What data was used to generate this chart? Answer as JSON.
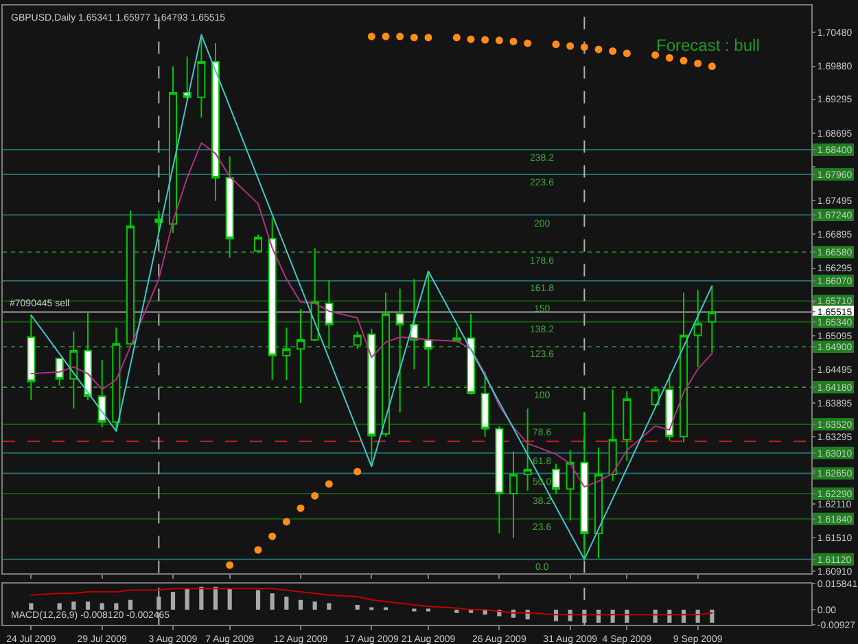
{
  "chart_data": [
    {
      "type": "candlestick",
      "title": "GBPUSD,Daily 1.65341 1.65977 1.64793 1.65515",
      "color": "#00c800",
      "x": [
        "2009-07-24",
        "2009-07-26",
        "2009-07-27",
        "2009-07-28",
        "2009-07-29",
        "2009-07-30",
        "2009-07-31",
        "2009-08-02",
        "2009-08-03",
        "2009-08-04",
        "2009-08-05",
        "2009-08-06",
        "2009-08-07",
        "2009-08-09",
        "2009-08-10",
        "2009-08-11",
        "2009-08-12",
        "2009-08-13",
        "2009-08-14",
        "2009-08-16",
        "2009-08-17",
        "2009-08-18",
        "2009-08-19",
        "2009-08-20",
        "2009-08-21",
        "2009-08-23",
        "2009-08-24",
        "2009-08-25",
        "2009-08-26",
        "2009-08-27",
        "2009-08-28",
        "2009-08-30",
        "2009-08-31",
        "2009-09-01",
        "2009-09-02",
        "2009-09-03",
        "2009-09-04",
        "2009-09-06",
        "2009-09-07",
        "2009-09-08",
        "2009-09-09",
        "2009-09-10"
      ],
      "ohlc": [
        [
          1.6507,
          1.6546,
          1.6395,
          1.6428
        ],
        [
          1.6469,
          1.647,
          1.6421,
          1.6433
        ],
        [
          1.6433,
          1.6517,
          1.638,
          1.6483
        ],
        [
          1.6483,
          1.6553,
          1.6395,
          1.6402
        ],
        [
          1.6402,
          1.6466,
          1.6347,
          1.6356
        ],
        [
          1.6356,
          1.6524,
          1.634,
          1.6495
        ],
        [
          1.6495,
          1.6732,
          1.6493,
          1.6704
        ],
        [
          1.6716,
          1.6732,
          1.6694,
          1.6711
        ],
        [
          1.6708,
          1.6988,
          1.6692,
          1.6941
        ],
        [
          1.6941,
          1.7005,
          1.693,
          1.6933
        ],
        [
          1.6933,
          1.7044,
          1.6897,
          1.6996
        ],
        [
          1.6996,
          1.7029,
          1.6749,
          1.679
        ],
        [
          1.679,
          1.6828,
          1.6648,
          1.6682
        ],
        [
          1.666,
          1.6689,
          1.6656,
          1.6684
        ],
        [
          1.6682,
          1.6718,
          1.6431,
          1.6474
        ],
        [
          1.6474,
          1.6524,
          1.6431,
          1.6486
        ],
        [
          1.6486,
          1.6557,
          1.639,
          1.6502
        ],
        [
          1.6502,
          1.6665,
          1.65,
          1.6569
        ],
        [
          1.6567,
          1.6608,
          1.6486,
          1.6529
        ],
        [
          1.6493,
          1.6517,
          1.6486,
          1.651
        ],
        [
          1.6512,
          1.6522,
          1.6277,
          1.6332
        ],
        [
          1.6335,
          1.6586,
          1.633,
          1.6548
        ],
        [
          1.6548,
          1.6593,
          1.6373,
          1.6529
        ],
        [
          1.6529,
          1.661,
          1.645,
          1.6502
        ],
        [
          1.6502,
          1.6624,
          1.6419,
          1.6486
        ],
        [
          1.65,
          1.6524,
          1.6498,
          1.6505
        ],
        [
          1.6505,
          1.6548,
          1.6405,
          1.6407
        ],
        [
          1.6407,
          1.6445,
          1.633,
          1.6344
        ],
        [
          1.6344,
          1.6349,
          1.6158,
          1.6229
        ],
        [
          1.6229,
          1.6304,
          1.615,
          1.6263
        ],
        [
          1.6263,
          1.638,
          1.6234,
          1.6272
        ],
        [
          1.6272,
          1.6282,
          1.6229,
          1.6237
        ],
        [
          1.6237,
          1.6306,
          1.6181,
          1.6284
        ],
        [
          1.6284,
          1.6373,
          1.6112,
          1.6158
        ],
        [
          1.6158,
          1.6311,
          1.6114,
          1.6263
        ],
        [
          1.6263,
          1.6414,
          1.6251,
          1.6325
        ],
        [
          1.6325,
          1.6411,
          1.6287,
          1.6397
        ],
        [
          1.6387,
          1.6419,
          1.6383,
          1.6414
        ],
        [
          1.6414,
          1.6442,
          1.6323,
          1.633
        ],
        [
          1.633,
          1.6586,
          1.632,
          1.651
        ],
        [
          1.651,
          1.6591,
          1.6454,
          1.6531
        ],
        [
          1.65341,
          1.65977,
          1.64793,
          1.65515
        ]
      ],
      "series": [
        {
          "type": "line",
          "color": "#b03080",
          "values": [
            1.6442,
            1.6445,
            1.6454,
            1.6442,
            1.6414,
            1.6431,
            1.649,
            1.661,
            1.6713,
            1.679,
            1.6852,
            1.6833,
            1.6792,
            1.6744,
            1.6665,
            1.661,
            1.6569,
            1.6567,
            1.6553,
            1.6541,
            1.6471,
            1.6498,
            1.6507,
            1.6505,
            1.6502,
            1.65,
            1.6486,
            1.6442,
            1.6385,
            1.6347,
            1.6318,
            1.6299,
            1.6282,
            1.6241,
            1.6251,
            1.6265,
            1.6306,
            1.6349,
            1.6342,
            1.6409,
            1.645,
            1.6478
          ]
        },
        {
          "type": "line",
          "color": "#40c8c8",
          "x": [
            "2009-07-24",
            "2009-07-30",
            "2009-08-05",
            "2009-08-17",
            "2009-08-21",
            "2009-09-01",
            "2009-09-10"
          ],
          "values": [
            1.6546,
            1.634,
            1.7044,
            1.6277,
            1.6624,
            1.6112,
            1.6598
          ]
        },
        {
          "type": "scatter",
          "color": "#ff8c1a",
          "marker": "circle",
          "values": [
            null,
            null,
            null,
            null,
            null,
            null,
            null,
            null,
            null,
            null,
            null,
            null,
            1.6102,
            1.6129,
            1.6153,
            1.6179,
            1.6203,
            1.6225,
            1.6246,
            1.6268,
            1.7041,
            1.7041,
            1.7041,
            1.7039,
            1.7039,
            1.7039,
            1.7036,
            1.7035,
            1.7034,
            1.7032,
            1.7029,
            1.7027,
            1.7024,
            1.7022,
            1.7018,
            1.7015,
            1.7011,
            1.7008,
            1.7003,
            1.6998,
            1.6993,
            1.6988
          ]
        }
      ],
      "xlim": [
        "2009-07-22",
        "2009-09-17"
      ],
      "ylim": [
        1.6088,
        1.7096
      ],
      "xticks": [
        {
          "value": "2009-07-24",
          "label": null
        },
        {
          "value": "2009-07-29",
          "label": null
        },
        {
          "value": "2009-08-03",
          "label": null
        },
        {
          "value": "2009-08-07",
          "label": null
        },
        {
          "value": "2009-08-12",
          "label": null
        },
        {
          "value": "2009-08-17",
          "label": null
        },
        {
          "value": "2009-08-21",
          "label": null
        },
        {
          "value": "2009-08-26",
          "label": null
        },
        {
          "value": "2009-08-31",
          "label": null
        },
        {
          "value": "2009-09-04",
          "label": null
        },
        {
          "value": "2009-09-09",
          "label": null
        }
      ],
      "yticks": [
        {
          "value": 1.7048,
          "label": "1.70480"
        },
        {
          "value": 1.6988,
          "label": "1.69880"
        },
        {
          "value": 1.69295,
          "label": "1.69295"
        },
        {
          "value": 1.68695,
          "label": "1.68695"
        },
        {
          "value": 1.68095,
          "label": null
        },
        {
          "value": 1.67495,
          "label": "1.67495"
        },
        {
          "value": 1.66895,
          "label": "1.66895"
        },
        {
          "value": 1.66295,
          "label": "1.66295"
        },
        {
          "value": 1.65695,
          "label": null
        },
        {
          "value": 1.65095,
          "label": "1.65095"
        },
        {
          "value": 1.64495,
          "label": "1.64495"
        },
        {
          "value": 1.63895,
          "label": "1.63895"
        },
        {
          "value": 1.63295,
          "label": "1.63295"
        },
        {
          "value": 1.62695,
          "label": null
        },
        {
          "value": 1.6211,
          "label": "1.62110"
        },
        {
          "value": 1.6151,
          "label": "1.61510"
        },
        {
          "value": 1.6091,
          "label": "1.60910"
        },
        {
          "value": 1.684,
          "label": "1.68400"
        },
        {
          "value": 1.6796,
          "label": "1.67960"
        },
        {
          "value": 1.6724,
          "label": "1.67240"
        },
        {
          "value": 1.6658,
          "label": "1.66580"
        },
        {
          "value": 1.6607,
          "label": "1.66070"
        },
        {
          "value": 1.6571,
          "label": "1.65710"
        },
        {
          "value": 1.65515,
          "label": "1.65515"
        },
        {
          "value": 1.6534,
          "label": "1.65340"
        },
        {
          "value": 1.649,
          "label": "1.64900"
        },
        {
          "value": 1.6418,
          "label": "1.64180"
        },
        {
          "value": 1.6352,
          "label": "1.63520"
        },
        {
          "value": 1.6301,
          "label": "1.63010"
        },
        {
          "value": 1.6265,
          "label": "1.62650"
        },
        {
          "value": 1.6229,
          "label": "1.62290"
        },
        {
          "value": 1.6184,
          "label": "1.61840"
        },
        {
          "value": 1.6112,
          "label": "1.61120"
        }
      ],
      "ref_lines": [
        {
          "axis": "y",
          "value": 1.684,
          "color": "#206e6e",
          "line_style": "solid"
        },
        {
          "axis": "y",
          "value": 1.6796,
          "color": "#206e6e",
          "line_style": "solid"
        },
        {
          "axis": "y",
          "value": 1.6724,
          "color": "#1e5a5a",
          "line_style": "solid"
        },
        {
          "axis": "y",
          "value": 1.6658,
          "color": "#2a7a2a",
          "line_style": "dotted"
        },
        {
          "axis": "y",
          "value": 1.6607,
          "color": "#206e6e",
          "line_style": "solid"
        },
        {
          "axis": "y",
          "value": 1.6571,
          "color": "#145a14",
          "line_style": "solid"
        },
        {
          "axis": "y",
          "value": 1.65515,
          "color": "#a0a0a0",
          "line_style": "solid"
        },
        {
          "axis": "y",
          "value": 1.6534,
          "color": "#145a14",
          "line_style": "solid"
        },
        {
          "axis": "y",
          "value": 1.649,
          "color": "#2a7a2a",
          "line_style": "dotted"
        },
        {
          "axis": "y",
          "value": 1.6418,
          "color": "#3a8a3a",
          "line_style": "dotted"
        },
        {
          "axis": "y",
          "value": 1.6352,
          "color": "#145a14",
          "line_style": "solid"
        },
        {
          "axis": "y",
          "value": 1.6322,
          "color": "#d02020",
          "line_style": "dashed"
        },
        {
          "axis": "y",
          "value": 1.6301,
          "color": "#206e6e",
          "line_style": "solid"
        },
        {
          "axis": "y",
          "value": 1.6265,
          "color": "#206e6e",
          "line_style": "solid"
        },
        {
          "axis": "y",
          "value": 1.6229,
          "color": "#145a14",
          "line_style": "solid"
        },
        {
          "axis": "y",
          "value": 1.6184,
          "color": "#145a14",
          "line_style": "solid"
        },
        {
          "axis": "y",
          "value": 1.6112,
          "color": "#206e6e",
          "line_style": "solid"
        },
        {
          "axis": "x",
          "value": "2009-08-02",
          "color": "#b0b0b0",
          "line_style": "dashed"
        },
        {
          "axis": "x",
          "value": "2009-09-01",
          "color": "#b0b0b0",
          "line_style": "dashed"
        }
      ],
      "annotations": [
        {
          "text": "#7090445 sell",
          "x": "2009-07-22",
          "y": 1.65515
        },
        "Forecast : bull",
        {
          "text": "238.2",
          "x": "2009-08-29",
          "y": 1.684
        },
        {
          "text": "223.6",
          "x": "2009-08-29",
          "y": 1.6796
        },
        {
          "text": "200",
          "x": "2009-08-29",
          "y": 1.6724
        },
        {
          "text": "178.6",
          "x": "2009-08-29",
          "y": 1.6658
        },
        {
          "text": "161.8",
          "x": "2009-08-29",
          "y": 1.6607
        },
        {
          "text": "150",
          "x": "2009-08-29",
          "y": 1.6571
        },
        {
          "text": "138.2",
          "x": "2009-08-29",
          "y": 1.6534
        },
        {
          "text": "123.6",
          "x": "2009-08-29",
          "y": 1.649
        },
        {
          "text": "100",
          "x": "2009-08-29",
          "y": 1.6418
        },
        {
          "text": "78.6",
          "x": "2009-08-29",
          "y": 1.6352
        },
        {
          "text": "61.8",
          "x": "2009-08-29",
          "y": 1.6301
        },
        {
          "text": "50.0",
          "x": "2009-08-29",
          "y": 1.6265
        },
        {
          "text": "38.2",
          "x": "2009-08-29",
          "y": 1.6229
        },
        {
          "text": "23.6",
          "x": "2009-08-29",
          "y": 1.6184
        },
        {
          "text": "0.0",
          "x": "2009-08-29",
          "y": 1.6112
        }
      ],
      "tick_labels": "y"
    },
    {
      "type": "bar",
      "title": "MACD(12,26,9) -0.008120 -0.002465",
      "x": [
        "2009-07-24",
        "2009-07-26",
        "2009-07-27",
        "2009-07-28",
        "2009-07-29",
        "2009-07-30",
        "2009-07-31",
        "2009-08-02",
        "2009-08-03",
        "2009-08-04",
        "2009-08-05",
        "2009-08-06",
        "2009-08-07",
        "2009-08-09",
        "2009-08-10",
        "2009-08-11",
        "2009-08-12",
        "2009-08-13",
        "2009-08-14",
        "2009-08-16",
        "2009-08-17",
        "2009-08-18",
        "2009-08-19",
        "2009-08-20",
        "2009-08-21",
        "2009-08-23",
        "2009-08-24",
        "2009-08-25",
        "2009-08-26",
        "2009-08-27",
        "2009-08-28",
        "2009-08-30",
        "2009-08-31",
        "2009-09-01",
        "2009-09-02",
        "2009-09-03",
        "2009-09-04",
        "2009-09-06",
        "2009-09-07",
        "2009-09-08",
        "2009-09-09",
        "2009-09-10"
      ],
      "series": [
        {
          "type": "bar",
          "color": "#a8a8a8",
          "values": [
            0.004,
            0.004,
            0.005,
            0.005,
            0.004,
            0.004,
            0.006,
            0.008,
            0.011,
            0.013,
            0.014,
            0.014,
            0.013,
            0.012,
            0.01,
            0.008,
            0.006,
            0.005,
            0.004,
            0.003,
            0.001,
            0.001,
            0.0,
            -0.001,
            -0.001,
            -0.002,
            -0.002,
            -0.003,
            -0.004,
            -0.005,
            -0.006,
            -0.007,
            -0.007,
            -0.008,
            -0.008,
            -0.008,
            -0.008,
            -0.008,
            -0.008,
            -0.008,
            -0.008,
            -0.008
          ]
        },
        {
          "type": "line",
          "color": "#c00000",
          "values": [
            0.009,
            0.01,
            0.01,
            0.011,
            0.011,
            0.011,
            0.012,
            0.012,
            0.013,
            0.013,
            0.013,
            0.013,
            0.013,
            0.013,
            0.013,
            0.012,
            0.011,
            0.01,
            0.009,
            0.008,
            0.006,
            0.005,
            0.004,
            0.003,
            0.002,
            0.001,
            0.0,
            0.0,
            -0.001,
            -0.002,
            -0.002,
            -0.003,
            -0.003,
            -0.003,
            -0.003,
            -0.003,
            -0.003,
            -0.003,
            -0.003,
            -0.003,
            -0.003,
            -0.002
          ]
        }
      ],
      "xlim": [
        "2009-07-22",
        "2009-09-17"
      ],
      "ylim": [
        -0.00927,
        0.015841
      ],
      "xticks": [
        {
          "value": "2009-07-24",
          "label": "24 Jul 2009"
        },
        {
          "value": "2009-07-29",
          "label": "29 Jul 2009"
        },
        {
          "value": "2009-08-03",
          "label": "3 Aug 2009"
        },
        {
          "value": "2009-08-07",
          "label": "7 Aug 2009"
        },
        {
          "value": "2009-08-12",
          "label": "12 Aug 2009"
        },
        {
          "value": "2009-08-17",
          "label": "17 Aug 2009"
        },
        {
          "value": "2009-08-21",
          "label": "21 Aug 2009"
        },
        {
          "value": "2009-08-26",
          "label": "26 Aug 2009"
        },
        {
          "value": "2009-08-31",
          "label": "31 Aug 2009"
        },
        {
          "value": "2009-09-04",
          "label": "4 Sep 2009"
        },
        {
          "value": "2009-09-09",
          "label": "9 Sep 2009"
        }
      ],
      "yticks": [
        {
          "value": 0.015841,
          "label": "0.015841"
        },
        {
          "value": 0,
          "label": "0.00"
        },
        {
          "value": -0.00927,
          "label": "-0.00927"
        }
      ],
      "ref_lines": [
        {
          "axis": "x",
          "value": "2009-08-02",
          "color": "#b0b0b0",
          "line_style": "dashed"
        },
        {
          "axis": "x",
          "value": "2009-09-01",
          "color": "#b0b0b0",
          "line_style": "dashed"
        }
      ]
    }
  ]
}
